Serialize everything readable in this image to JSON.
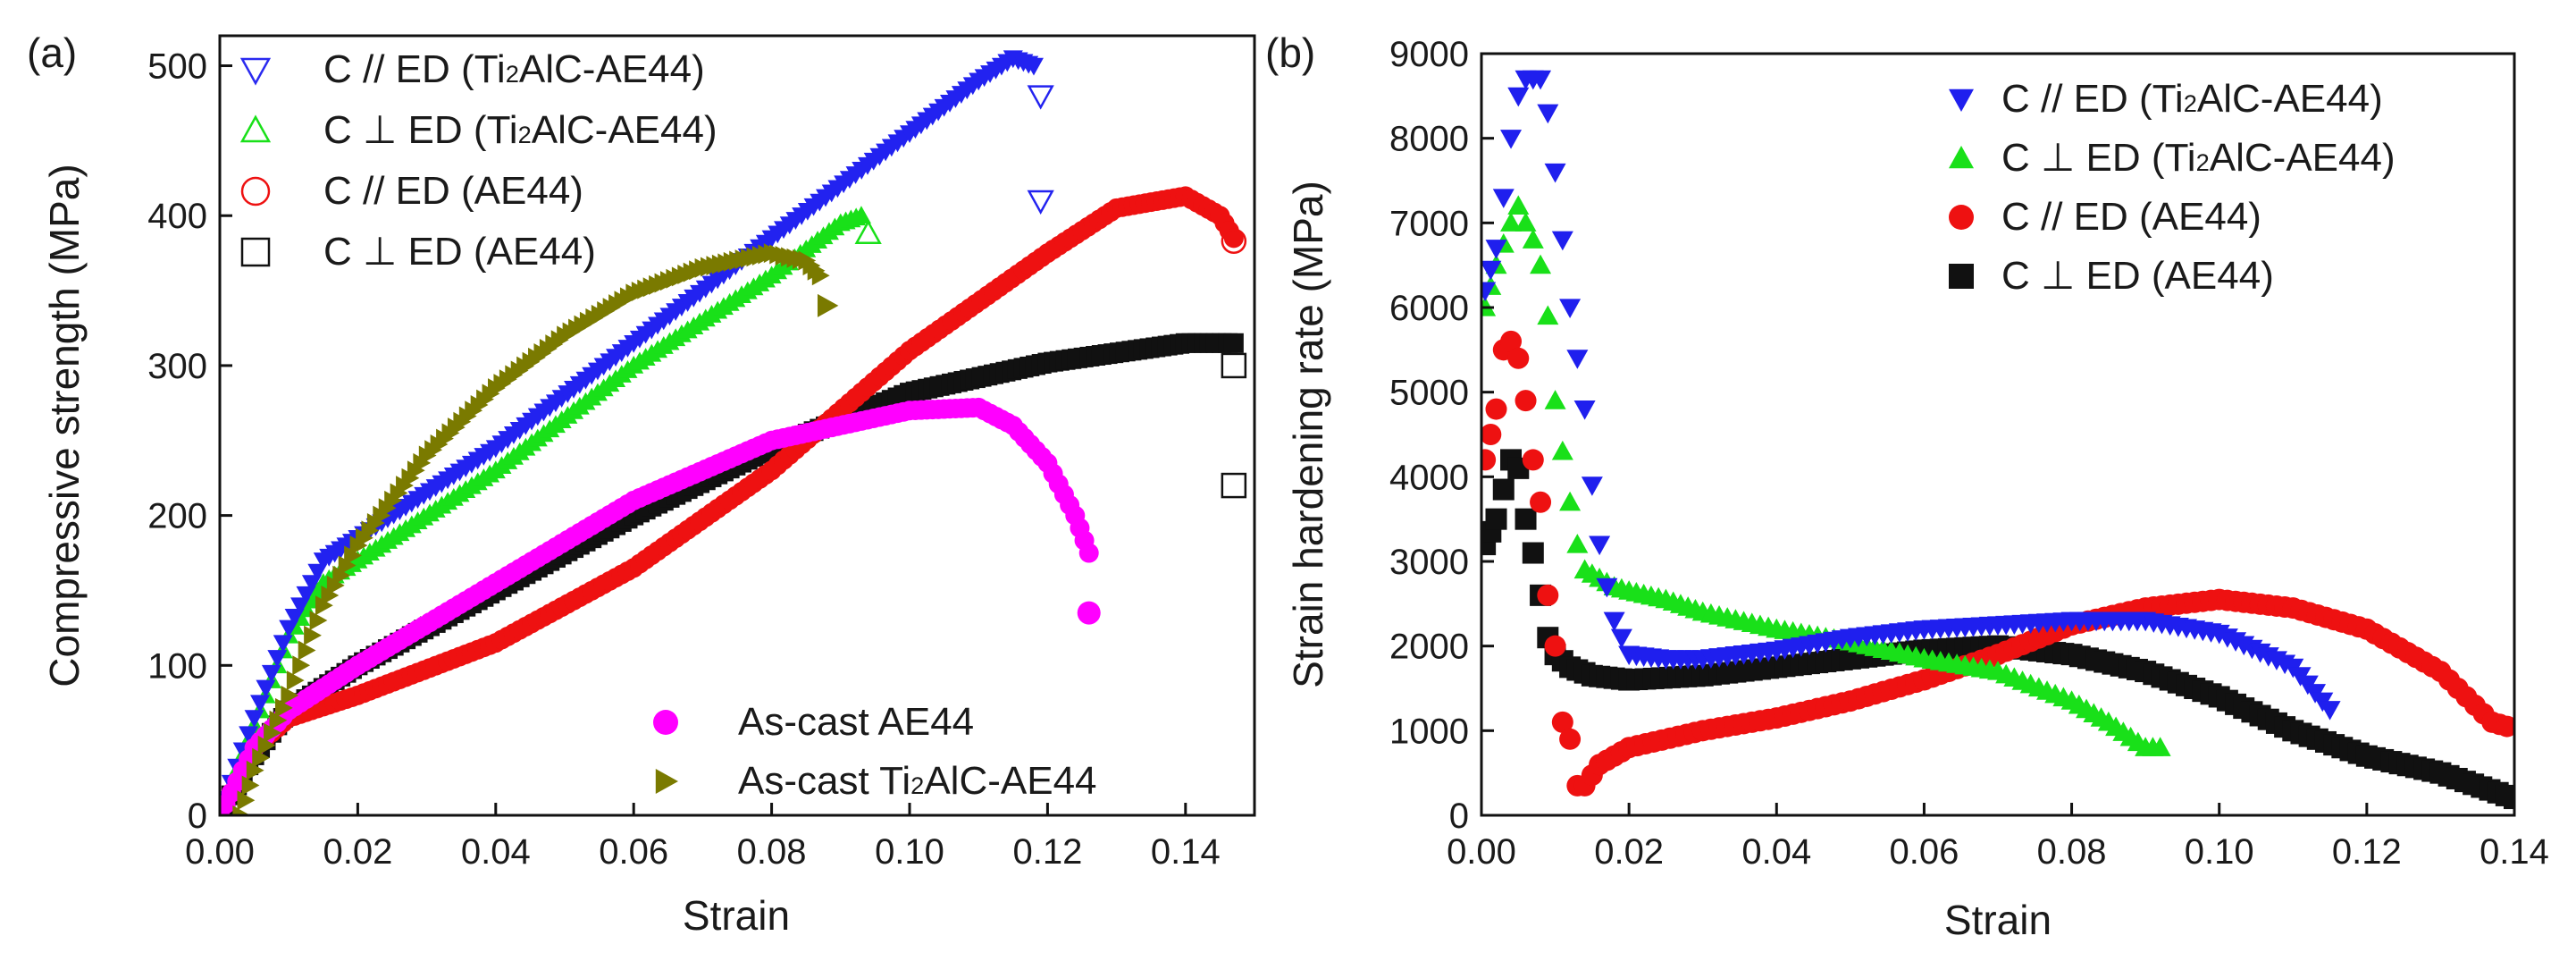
{
  "chart_data": [
    {
      "type": "scatter",
      "panel_label": "(a)",
      "xlabel": "Strain",
      "ylabel": "Compressive strength (MPa)",
      "xlim": [
        0,
        0.15
      ],
      "ylim": [
        0,
        520
      ],
      "xticks": [
        "0.00",
        "0.02",
        "0.04",
        "0.06",
        "0.08",
        "0.10",
        "0.12",
        "0.14"
      ],
      "yticks": [
        "0",
        "100",
        "200",
        "300",
        "400",
        "500"
      ],
      "legend_top": [
        {
          "prefix": "C // ED (",
          "sub_a": "Ti",
          "sub_b": "2",
          "sub_c": "AlC-AE44)",
          "marker": "tri-down-open",
          "color": "#2a2af0"
        },
        {
          "prefix": "C ⊥ ED (",
          "sub_a": "Ti",
          "sub_b": "2",
          "sub_c": "AlC-AE44)",
          "marker": "tri-up-open",
          "color": "#19e019"
        },
        {
          "prefix": "C // ED (AE44)",
          "sub_a": "",
          "sub_b": "",
          "sub_c": "",
          "marker": "circle-open",
          "color": "#ee1111"
        },
        {
          "prefix": "C ⊥ ED (AE44)",
          "sub_a": "",
          "sub_b": "",
          "sub_c": "",
          "marker": "square-open",
          "color": "#111111"
        }
      ],
      "legend_bottom": [
        {
          "prefix": "As-cast AE44",
          "sub_a": "",
          "sub_b": "",
          "sub_c": "",
          "marker": "circle-filled",
          "color": "#ff00ff"
        },
        {
          "prefix": "As-cast ",
          "sub_a": "Ti",
          "sub_b": "2",
          "sub_c": "AlC-AE44",
          "marker": "tri-right-filled",
          "color": "#7a7a00"
        }
      ],
      "series": [
        {
          "name": "C ⊥ ED (AE44)",
          "color": "#111111",
          "marker": "square",
          "x": [
            0,
            0.005,
            0.01,
            0.02,
            0.04,
            0.06,
            0.08,
            0.1,
            0.12,
            0.14,
            0.147
          ],
          "y": [
            0,
            40,
            70,
            100,
            150,
            200,
            245,
            282,
            302,
            315,
            315
          ],
          "tail": [
            [
              0.147,
              300
            ],
            [
              0.147,
              220
            ]
          ]
        },
        {
          "name": "C // ED (AE44)",
          "color": "#ee1111",
          "marker": "circle",
          "x": [
            0,
            0.005,
            0.01,
            0.02,
            0.04,
            0.06,
            0.08,
            0.1,
            0.12,
            0.13,
            0.14,
            0.145,
            0.147
          ],
          "y": [
            0,
            45,
            65,
            80,
            115,
            165,
            230,
            310,
            375,
            405,
            413,
            400,
            385
          ],
          "tail": [
            [
              0.147,
              383
            ]
          ]
        },
        {
          "name": "C ⊥ ED (Ti2AlC-AE44)",
          "color": "#19e019",
          "marker": "triangle-up",
          "x": [
            0,
            0.005,
            0.01,
            0.015,
            0.02,
            0.04,
            0.06,
            0.08,
            0.09,
            0.093
          ],
          "y": [
            0,
            60,
            120,
            155,
            170,
            230,
            300,
            360,
            395,
            400
          ],
          "tail": [
            [
              0.094,
              388
            ]
          ]
        },
        {
          "name": "C // ED (Ti2AlC-AE44)",
          "color": "#2222f0",
          "marker": "triangle-down",
          "x": [
            0,
            0.005,
            0.01,
            0.015,
            0.02,
            0.04,
            0.06,
            0.08,
            0.1,
            0.11,
            0.115,
            0.118
          ],
          "y": [
            0,
            65,
            125,
            170,
            185,
            245,
            315,
            385,
            455,
            490,
            505,
            500
          ],
          "tail": [
            [
              0.119,
              480
            ],
            [
              0.119,
              410
            ]
          ]
        },
        {
          "name": "As-cast AE44",
          "color": "#ff00ff",
          "marker": "circle",
          "x": [
            0,
            0.005,
            0.01,
            0.02,
            0.04,
            0.06,
            0.08,
            0.1,
            0.11,
            0.115,
            0.12,
            0.124,
            0.126
          ],
          "y": [
            0,
            45,
            70,
            100,
            155,
            210,
            250,
            270,
            272,
            260,
            235,
            200,
            175
          ],
          "tail": [
            [
              0.126,
              135
            ]
          ]
        },
        {
          "name": "As-cast Ti2AlC-AE44",
          "color": "#7a7a00",
          "marker": "triangle-right",
          "x": [
            0.003,
            0.005,
            0.01,
            0.015,
            0.02,
            0.03,
            0.04,
            0.05,
            0.06,
            0.07,
            0.08,
            0.085,
            0.087
          ],
          "y": [
            0,
            30,
            80,
            140,
            180,
            240,
            285,
            320,
            348,
            365,
            375,
            370,
            360
          ],
          "tail": [
            [
              0.088,
              340
            ]
          ]
        }
      ]
    },
    {
      "type": "scatter",
      "panel_label": "(b)",
      "xlabel": "Strain",
      "ylabel": "Strain hardening rate (MPa)",
      "xlim": [
        0,
        0.14
      ],
      "ylim": [
        0,
        9000
      ],
      "xticks": [
        "0.00",
        "0.02",
        "0.04",
        "0.06",
        "0.08",
        "0.10",
        "0.12",
        "0.14"
      ],
      "yticks": [
        "0",
        "1000",
        "2000",
        "3000",
        "4000",
        "5000",
        "6000",
        "7000",
        "8000",
        "9000"
      ],
      "legend": [
        {
          "prefix": "C // ED (",
          "sub_a": "Ti",
          "sub_b": "2",
          "sub_c": "AlC-AE44)",
          "marker": "tri-down-filled",
          "color": "#1f1fee"
        },
        {
          "prefix": "C ⊥ ED (",
          "sub_a": "Ti",
          "sub_b": "2",
          "sub_c": "AlC-AE44)",
          "marker": "tri-up-filled",
          "color": "#19e019"
        },
        {
          "prefix": "C // ED (AE44)",
          "sub_a": "",
          "sub_b": "",
          "sub_c": "",
          "marker": "circle-filled",
          "color": "#ee1111"
        },
        {
          "prefix": "C ⊥ ED (AE44)",
          "sub_a": "",
          "sub_b": "",
          "sub_c": "",
          "marker": "square-filled",
          "color": "#111111"
        }
      ],
      "series": [
        {
          "name": "C ⊥ ED (AE44)",
          "color": "#111111",
          "marker": "square",
          "x": [
            0.0005,
            0.002,
            0.004,
            0.005,
            0.006,
            0.007,
            0.008,
            0.009,
            0.01,
            0.012,
            0.015,
            0.02,
            0.03,
            0.04,
            0.05,
            0.06,
            0.07,
            0.08,
            0.09,
            0.1,
            0.11,
            0.12,
            0.13,
            0.14
          ],
          "y": [
            3200,
            3500,
            4200,
            4100,
            3500,
            3100,
            2600,
            2100,
            1900,
            1750,
            1650,
            1600,
            1650,
            1750,
            1850,
            1950,
            2000,
            1900,
            1700,
            1400,
            1000,
            700,
            500,
            200
          ]
        },
        {
          "name": "C // ED (AE44)",
          "color": "#ee1111",
          "marker": "circle",
          "x": [
            0.0005,
            0.002,
            0.003,
            0.004,
            0.005,
            0.006,
            0.007,
            0.008,
            0.009,
            0.01,
            0.011,
            0.012,
            0.013,
            0.014,
            0.016,
            0.02,
            0.03,
            0.04,
            0.05,
            0.06,
            0.07,
            0.08,
            0.09,
            0.1,
            0.11,
            0.12,
            0.13,
            0.137,
            0.139
          ],
          "y": [
            4200,
            4800,
            5500,
            5600,
            5400,
            4900,
            4200,
            3700,
            2600,
            2000,
            1100,
            900,
            350,
            350,
            600,
            800,
            1000,
            1150,
            1350,
            1600,
            1900,
            2250,
            2450,
            2550,
            2450,
            2200,
            1700,
            1100,
            1050
          ]
        },
        {
          "name": "C ⊥ ED (Ti2AlC-AE44)",
          "color": "#19e019",
          "marker": "triangle-up",
          "x": [
            0.0005,
            0.002,
            0.004,
            0.005,
            0.006,
            0.007,
            0.008,
            0.009,
            0.01,
            0.011,
            0.012,
            0.013,
            0.014,
            0.016,
            0.018,
            0.02,
            0.025,
            0.03,
            0.04,
            0.05,
            0.06,
            0.07,
            0.08,
            0.085,
            0.09,
            0.092
          ],
          "y": [
            6000,
            6500,
            7000,
            7200,
            7000,
            6800,
            6500,
            5900,
            4900,
            4300,
            3700,
            3200,
            2900,
            2800,
            2700,
            2650,
            2550,
            2400,
            2200,
            2050,
            1850,
            1700,
            1350,
            1100,
            800,
            800
          ]
        },
        {
          "name": "C // ED (Ti2AlC-AE44)",
          "color": "#1f1fee",
          "marker": "triangle-down",
          "x": [
            0.0005,
            0.002,
            0.003,
            0.004,
            0.005,
            0.006,
            0.007,
            0.008,
            0.009,
            0.01,
            0.011,
            0.012,
            0.013,
            0.014,
            0.015,
            0.016,
            0.017,
            0.018,
            0.02,
            0.025,
            0.03,
            0.04,
            0.05,
            0.06,
            0.07,
            0.08,
            0.09,
            0.1,
            0.11,
            0.115
          ],
          "y": [
            6200,
            6700,
            7300,
            8000,
            8500,
            8700,
            8700,
            8700,
            8300,
            7600,
            6800,
            6000,
            5400,
            4800,
            3900,
            3200,
            2700,
            2300,
            1900,
            1850,
            1850,
            1950,
            2100,
            2200,
            2250,
            2300,
            2300,
            2150,
            1750,
            1250
          ]
        }
      ]
    }
  ]
}
